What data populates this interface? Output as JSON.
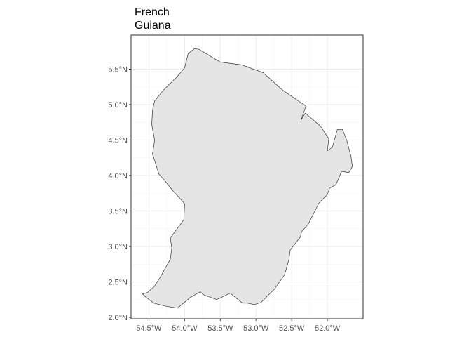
{
  "chart_data": {
    "type": "map",
    "title": "French\nGuiana",
    "title_lines": [
      "French",
      "Guiana"
    ],
    "xlabel": "",
    "ylabel": "",
    "xlim": [
      -54.75,
      -51.5
    ],
    "ylim": [
      1.98,
      5.98
    ],
    "x_ticks": [
      {
        "value": -54.5,
        "label": "54.5°W"
      },
      {
        "value": -54.0,
        "label": "54.0°W"
      },
      {
        "value": -53.5,
        "label": "53.5°W"
      },
      {
        "value": -53.0,
        "label": "53.0°W"
      },
      {
        "value": -52.5,
        "label": "52.5°W"
      },
      {
        "value": -52.0,
        "label": "52.0°W"
      }
    ],
    "y_ticks": [
      {
        "value": 2.0,
        "label": "2.0°N"
      },
      {
        "value": 2.5,
        "label": "2.5°N"
      },
      {
        "value": 3.0,
        "label": "3.0°N"
      },
      {
        "value": 3.5,
        "label": "3.5°N"
      },
      {
        "value": 4.0,
        "label": "4.0°N"
      },
      {
        "value": 4.5,
        "label": "4.5°N"
      },
      {
        "value": 5.0,
        "label": "5.0°N"
      },
      {
        "value": 5.5,
        "label": "5.5°N"
      }
    ],
    "grid": true,
    "colors": {
      "fill": "#e5e5e5",
      "stroke": "#333333",
      "grid": "#ebebeb",
      "panel_border": "#333333",
      "tick_text": "#4d4d4d"
    },
    "outline": [
      [
        -53.86,
        5.79
      ],
      [
        -53.8,
        5.78
      ],
      [
        -53.5,
        5.6
      ],
      [
        -53.2,
        5.56
      ],
      [
        -52.9,
        5.45
      ],
      [
        -52.62,
        5.2
      ],
      [
        -52.3,
        4.98
      ],
      [
        -52.37,
        4.78
      ],
      [
        -52.31,
        4.88
      ],
      [
        -52.1,
        4.7
      ],
      [
        -51.98,
        4.52
      ],
      [
        -52.0,
        4.35
      ],
      [
        -51.93,
        4.4
      ],
      [
        -51.86,
        4.65
      ],
      [
        -51.79,
        4.65
      ],
      [
        -51.73,
        4.5
      ],
      [
        -51.67,
        4.27
      ],
      [
        -51.65,
        4.13
      ],
      [
        -51.7,
        4.04
      ],
      [
        -51.8,
        4.06
      ],
      [
        -51.88,
        3.87
      ],
      [
        -51.97,
        3.82
      ],
      [
        -52.0,
        3.73
      ],
      [
        -52.12,
        3.61
      ],
      [
        -52.27,
        3.31
      ],
      [
        -52.36,
        3.21
      ],
      [
        -52.38,
        3.13
      ],
      [
        -52.52,
        2.95
      ],
      [
        -52.54,
        2.81
      ],
      [
        -52.6,
        2.6
      ],
      [
        -52.74,
        2.4
      ],
      [
        -52.93,
        2.21
      ],
      [
        -53.02,
        2.18
      ],
      [
        -53.12,
        2.2
      ],
      [
        -53.19,
        2.2
      ],
      [
        -53.36,
        2.34
      ],
      [
        -53.55,
        2.25
      ],
      [
        -53.74,
        2.32
      ],
      [
        -53.78,
        2.36
      ],
      [
        -53.92,
        2.28
      ],
      [
        -54.1,
        2.13
      ],
      [
        -54.28,
        2.16
      ],
      [
        -54.43,
        2.2
      ],
      [
        -54.55,
        2.29
      ],
      [
        -54.59,
        2.33
      ],
      [
        -54.52,
        2.35
      ],
      [
        -54.43,
        2.43
      ],
      [
        -54.35,
        2.55
      ],
      [
        -54.2,
        2.82
      ],
      [
        -54.18,
        2.98
      ],
      [
        -54.2,
        3.12
      ],
      [
        -54.01,
        3.38
      ],
      [
        -54.0,
        3.6
      ],
      [
        -54.06,
        3.67
      ],
      [
        -54.16,
        3.78
      ],
      [
        -54.28,
        3.93
      ],
      [
        -54.36,
        4.02
      ],
      [
        -54.4,
        4.15
      ],
      [
        -54.45,
        4.3
      ],
      [
        -54.42,
        4.5
      ],
      [
        -54.46,
        4.72
      ],
      [
        -54.45,
        4.92
      ],
      [
        -54.42,
        5.05
      ],
      [
        -54.3,
        5.2
      ],
      [
        -54.1,
        5.4
      ],
      [
        -54.0,
        5.52
      ],
      [
        -53.95,
        5.72
      ],
      [
        -53.86,
        5.79
      ]
    ]
  }
}
